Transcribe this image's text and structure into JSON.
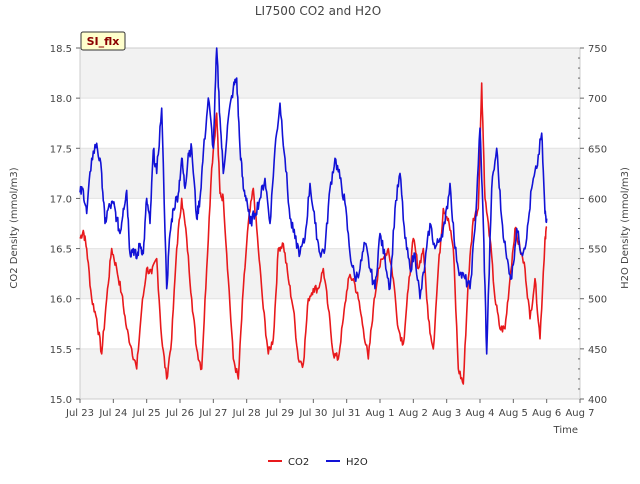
{
  "chart_data": {
    "type": "line",
    "title": "LI7500 CO2 and H2O",
    "xlabel": "Time",
    "ylabel": "CO2 Density (mmol/m3)",
    "y2label": "H2O Density (mmol/m3)",
    "site_tag": "SI_flx",
    "xlim": [
      0,
      15
    ],
    "ylim": [
      15.0,
      18.5
    ],
    "y2lim": [
      400,
      750
    ],
    "x_ticks": [
      {
        "x": 0,
        "label": "Jul 23"
      },
      {
        "x": 1,
        "label": "Jul 24"
      },
      {
        "x": 2,
        "label": "Jul 25"
      },
      {
        "x": 3,
        "label": "Jul 26"
      },
      {
        "x": 4,
        "label": "Jul 27"
      },
      {
        "x": 5,
        "label": "Jul 28"
      },
      {
        "x": 6,
        "label": "Jul 29"
      },
      {
        "x": 7,
        "label": "Jul 30"
      },
      {
        "x": 8,
        "label": "Jul 31"
      },
      {
        "x": 9,
        "label": "Aug 1"
      },
      {
        "x": 10,
        "label": "Aug 2"
      },
      {
        "x": 11,
        "label": "Aug 3"
      },
      {
        "x": 12,
        "label": "Aug 4"
      },
      {
        "x": 13,
        "label": "Aug 5"
      },
      {
        "x": 14,
        "label": "Aug 6"
      },
      {
        "x": 15,
        "label": "Aug 7"
      }
    ],
    "y_ticks": [
      "15.0",
      "15.5",
      "16.0",
      "16.5",
      "17.0",
      "17.5",
      "18.0",
      "18.5"
    ],
    "y2_ticks": [
      "400",
      "450",
      "500",
      "550",
      "600",
      "650",
      "700",
      "750"
    ],
    "grid": true,
    "legend_position": "bottom-center",
    "series": [
      {
        "name": "CO2",
        "color": "#e8191c",
        "axis": "left",
        "x": [
          0.0,
          0.1,
          0.2,
          0.35,
          0.5,
          0.65,
          0.8,
          0.95,
          1.1,
          1.25,
          1.4,
          1.55,
          1.7,
          1.85,
          2.0,
          2.15,
          2.3,
          2.45,
          2.6,
          2.75,
          2.9,
          3.05,
          3.2,
          3.35,
          3.5,
          3.65,
          3.8,
          3.95,
          4.1,
          4.2,
          4.3,
          4.45,
          4.6,
          4.75,
          4.9,
          5.05,
          5.2,
          5.35,
          5.5,
          5.65,
          5.8,
          5.95,
          6.1,
          6.25,
          6.4,
          6.55,
          6.7,
          6.85,
          7.0,
          7.15,
          7.3,
          7.45,
          7.6,
          7.75,
          7.9,
          8.05,
          8.2,
          8.35,
          8.5,
          8.65,
          8.8,
          8.95,
          9.1,
          9.25,
          9.4,
          9.55,
          9.7,
          9.85,
          10.0,
          10.15,
          10.3,
          10.45,
          10.6,
          10.75,
          10.9,
          11.05,
          11.2,
          11.35,
          11.5,
          11.65,
          11.8,
          11.95,
          12.05,
          12.15,
          12.3,
          12.45,
          12.6,
          12.75,
          12.9,
          13.05,
          13.2,
          13.35,
          13.5,
          13.65,
          13.8,
          13.95
        ],
        "values": [
          16.6,
          16.68,
          16.5,
          16.0,
          15.8,
          15.45,
          16.0,
          16.5,
          16.3,
          16.05,
          15.7,
          15.5,
          15.3,
          15.9,
          16.3,
          16.25,
          16.4,
          15.6,
          15.2,
          15.6,
          16.5,
          17.0,
          16.6,
          16.0,
          15.5,
          15.3,
          16.3,
          17.3,
          17.85,
          17.05,
          17.0,
          16.2,
          15.4,
          15.2,
          16.1,
          16.75,
          17.1,
          16.5,
          15.9,
          15.45,
          15.6,
          16.5,
          16.55,
          16.2,
          15.9,
          15.4,
          15.35,
          16.0,
          16.1,
          16.1,
          16.3,
          15.9,
          15.45,
          15.4,
          15.8,
          16.2,
          16.2,
          16.0,
          15.7,
          15.4,
          15.9,
          16.3,
          16.4,
          16.5,
          16.2,
          15.7,
          15.55,
          16.1,
          16.6,
          16.3,
          16.5,
          15.8,
          15.5,
          16.3,
          16.9,
          16.8,
          16.5,
          15.3,
          15.15,
          16.2,
          16.8,
          16.9,
          18.15,
          17.0,
          16.6,
          16.0,
          15.7,
          15.7,
          16.2,
          16.7,
          16.5,
          16.3,
          15.8,
          16.2,
          15.6,
          16.6
        ],
        "end_value": 16.72
      },
      {
        "name": "H2O",
        "color": "#1212d6",
        "axis": "right",
        "x": [
          0.0,
          0.1,
          0.2,
          0.35,
          0.5,
          0.65,
          0.75,
          0.85,
          1.0,
          1.1,
          1.2,
          1.3,
          1.4,
          1.5,
          1.6,
          1.7,
          1.8,
          1.9,
          2.0,
          2.1,
          2.2,
          2.3,
          2.45,
          2.6,
          2.7,
          2.8,
          2.95,
          3.05,
          3.15,
          3.25,
          3.35,
          3.5,
          3.6,
          3.7,
          3.85,
          4.0,
          4.1,
          4.2,
          4.3,
          4.45,
          4.6,
          4.7,
          4.8,
          4.9,
          5.0,
          5.1,
          5.25,
          5.4,
          5.55,
          5.7,
          5.85,
          6.0,
          6.15,
          6.3,
          6.45,
          6.6,
          6.75,
          6.9,
          7.05,
          7.2,
          7.35,
          7.5,
          7.65,
          7.8,
          7.95,
          8.1,
          8.25,
          8.4,
          8.55,
          8.7,
          8.85,
          9.0,
          9.15,
          9.3,
          9.45,
          9.6,
          9.75,
          9.9,
          10.05,
          10.2,
          10.35,
          10.5,
          10.65,
          10.8,
          10.95,
          11.1,
          11.25,
          11.4,
          11.55,
          11.7,
          11.85,
          12.0,
          12.1,
          12.2,
          12.35,
          12.5,
          12.65,
          12.8,
          12.95,
          13.1,
          13.25,
          13.4,
          13.55,
          13.7,
          13.85,
          13.95
        ],
        "values": [
          606,
          608,
          585,
          640,
          655,
          625,
          575,
          590,
          595,
          580,
          565,
          590,
          608,
          545,
          550,
          540,
          555,
          545,
          600,
          575,
          648,
          625,
          690,
          510,
          565,
          590,
          605,
          640,
          610,
          645,
          650,
          580,
          600,
          645,
          700,
          650,
          750,
          680,
          625,
          680,
          710,
          720,
          650,
          610,
          600,
          575,
          585,
          600,
          620,
          575,
          650,
          695,
          640,
          580,
          560,
          545,
          560,
          615,
          575,
          545,
          550,
          610,
          640,
          620,
          595,
          545,
          520,
          530,
          555,
          530,
          510,
          565,
          540,
          510,
          590,
          625,
          560,
          530,
          545,
          500,
          535,
          575,
          550,
          560,
          575,
          615,
          550,
          525,
          520,
          510,
          570,
          670,
          575,
          445,
          610,
          650,
          580,
          540,
          520,
          570,
          545,
          560,
          610,
          630,
          665,
          585
        ],
        "end_value": 580
      }
    ]
  }
}
